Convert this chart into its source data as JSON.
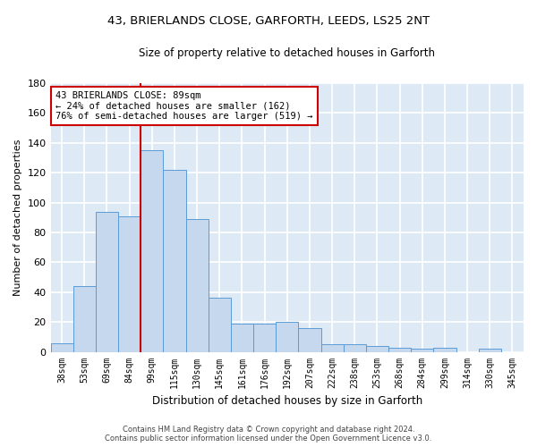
{
  "title_line1": "43, BRIERLANDS CLOSE, GARFORTH, LEEDS, LS25 2NT",
  "title_line2": "Size of property relative to detached houses in Garforth",
  "xlabel": "Distribution of detached houses by size in Garforth",
  "ylabel": "Number of detached properties",
  "categories": [
    "38sqm",
    "53sqm",
    "69sqm",
    "84sqm",
    "99sqm",
    "115sqm",
    "130sqm",
    "145sqm",
    "161sqm",
    "176sqm",
    "192sqm",
    "207sqm",
    "222sqm",
    "238sqm",
    "253sqm",
    "268sqm",
    "284sqm",
    "299sqm",
    "314sqm",
    "330sqm",
    "345sqm"
  ],
  "values": [
    6,
    44,
    94,
    91,
    135,
    122,
    89,
    36,
    19,
    19,
    20,
    16,
    5,
    5,
    4,
    3,
    2,
    3,
    0,
    2,
    0
  ],
  "bar_color": "#c5d8ed",
  "bar_edge_color": "#5b9bd5",
  "vline_x": 4.0,
  "vline_color": "#cc0000",
  "annotation_text": "43 BRIERLANDS CLOSE: 89sqm\n← 24% of detached houses are smaller (162)\n76% of semi-detached houses are larger (519) →",
  "annotation_box_color": "#ffffff",
  "annotation_box_edge": "#cc0000",
  "ylim": [
    0,
    180
  ],
  "yticks": [
    0,
    20,
    40,
    60,
    80,
    100,
    120,
    140,
    160,
    180
  ],
  "footer_line1": "Contains HM Land Registry data © Crown copyright and database right 2024.",
  "footer_line2": "Contains public sector information licensed under the Open Government Licence v3.0.",
  "fig_bg_color": "#ffffff",
  "plot_bg_color": "#dde9f5",
  "grid_color": "#ffffff"
}
